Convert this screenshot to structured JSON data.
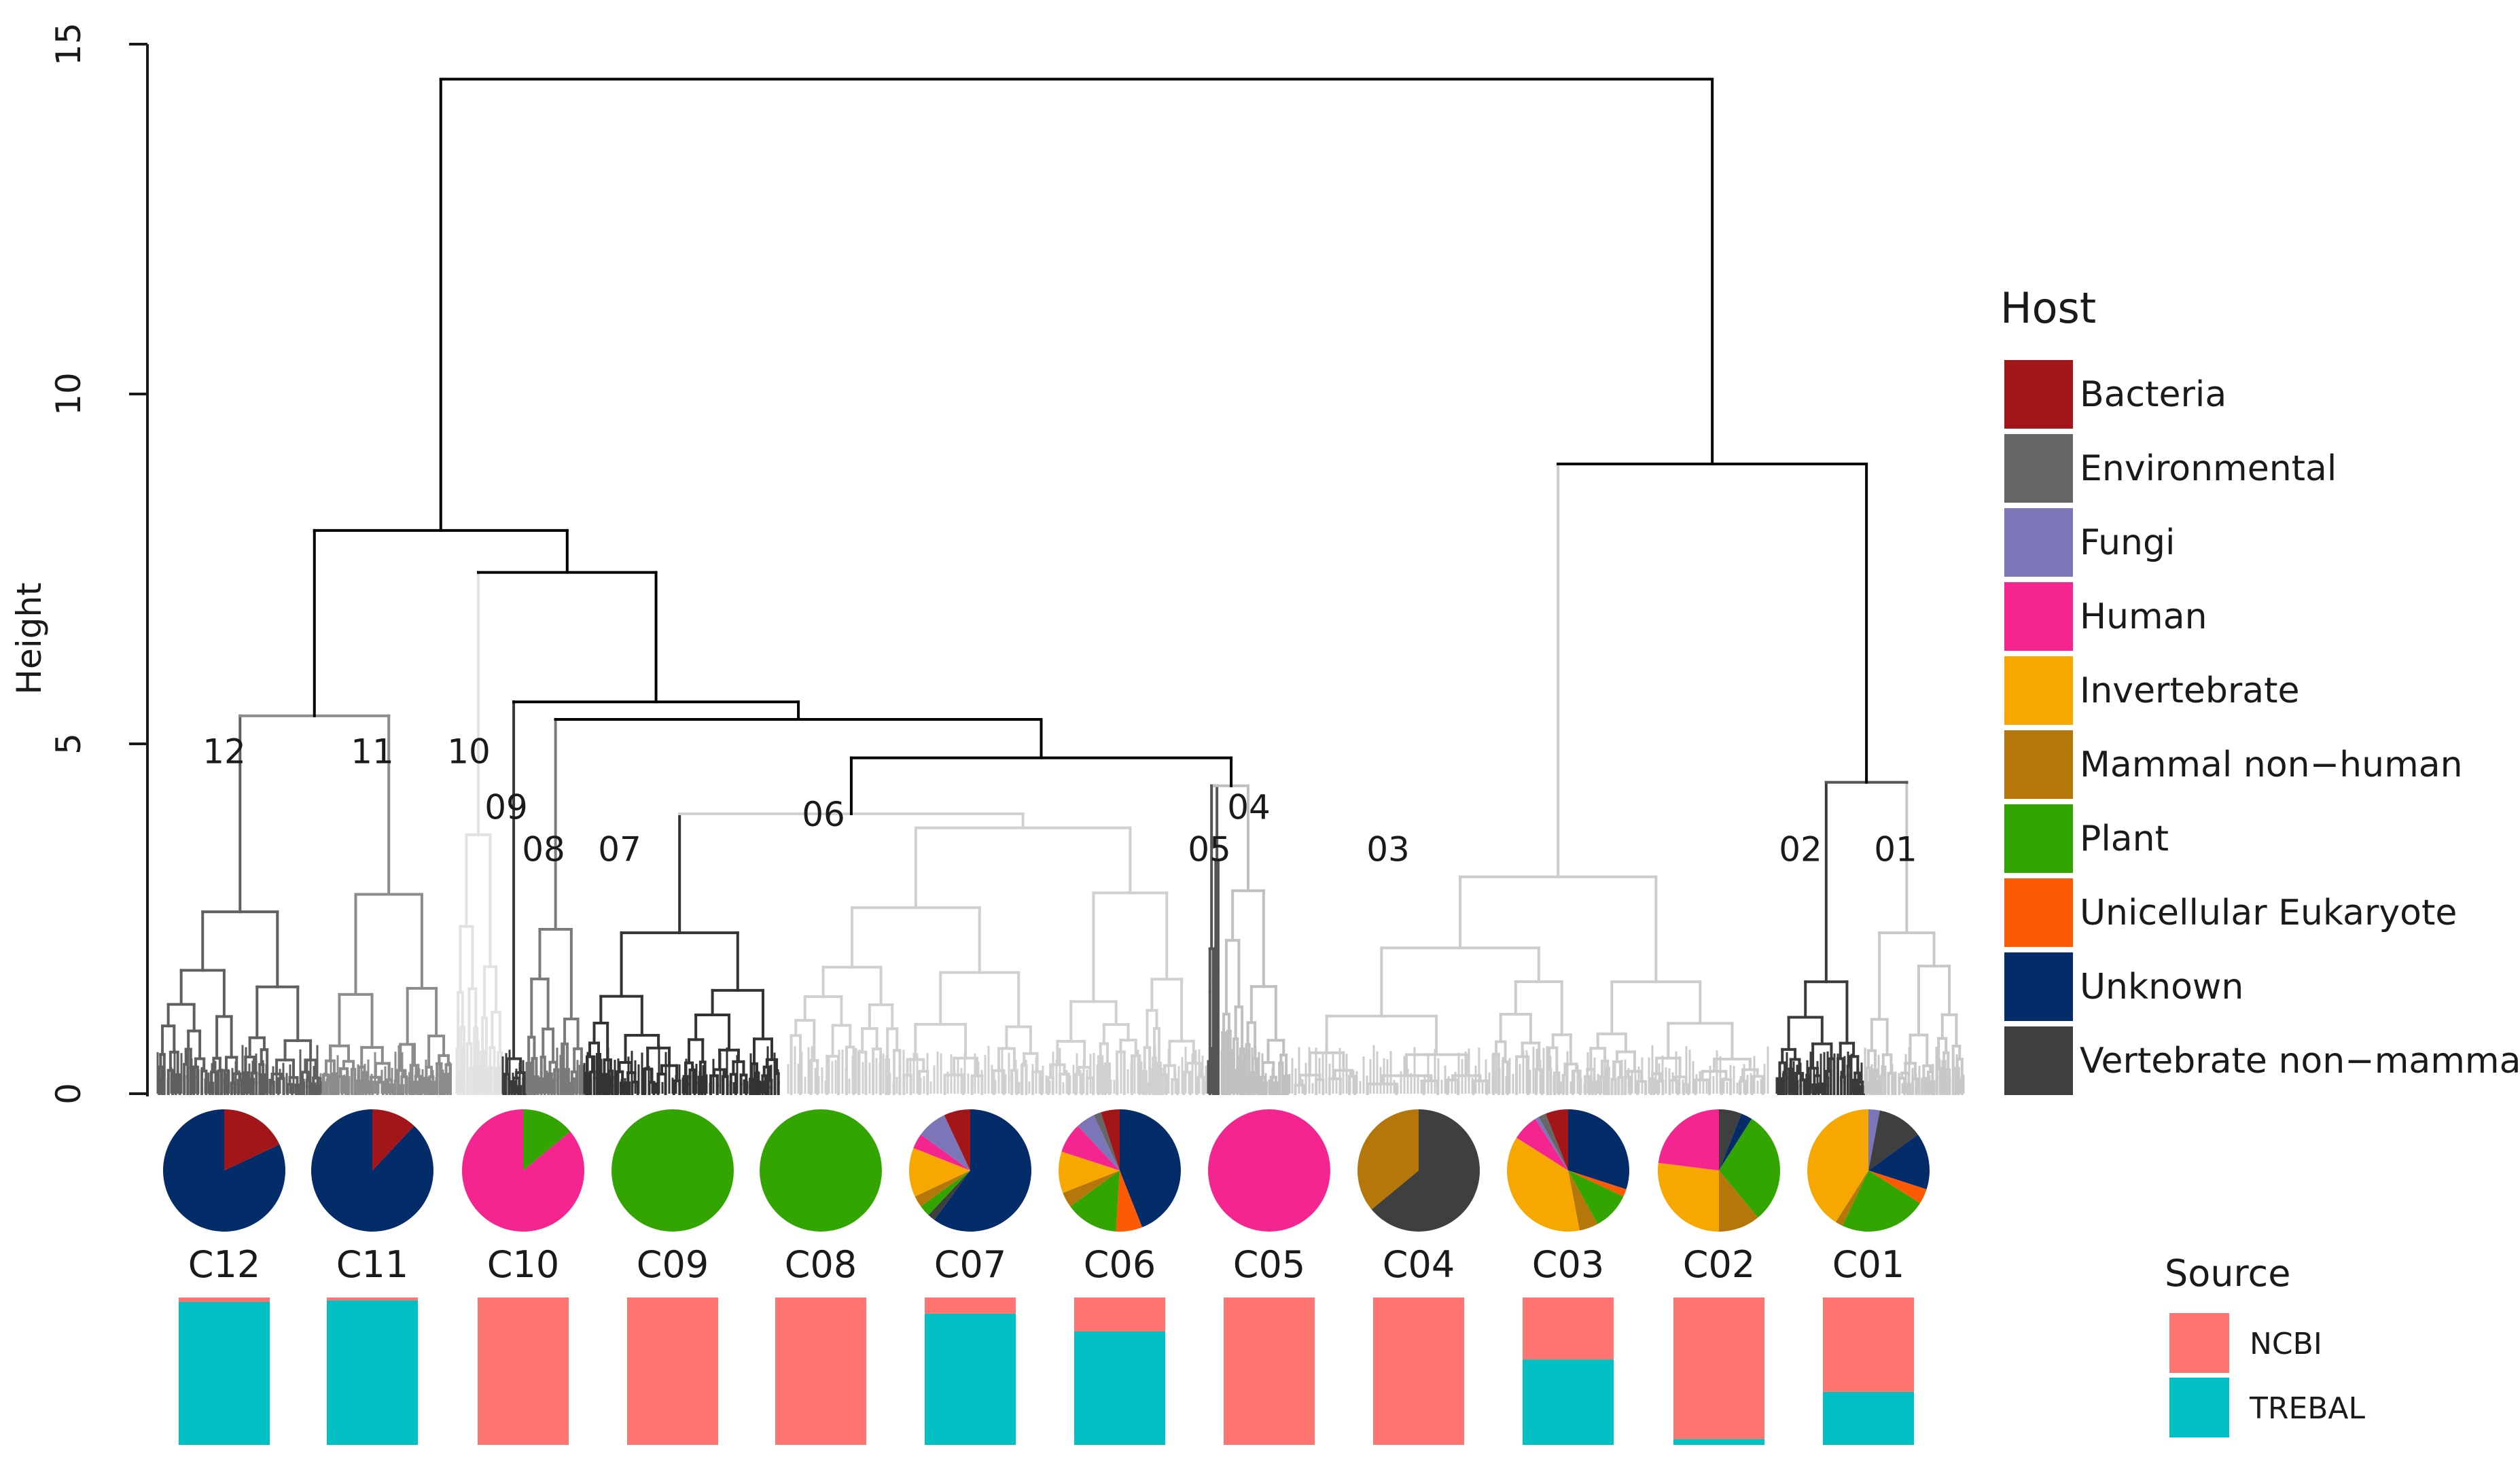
{
  "chart_data": {
    "type": "dendrogram",
    "y_axis": {
      "label": "Height",
      "ylim": [
        0,
        15
      ],
      "ticks": [
        0,
        5,
        10,
        15
      ],
      "tick_labels": [
        "0",
        "5",
        "10",
        "15"
      ]
    },
    "clusters": [
      {
        "id": "12",
        "label": "C12",
        "merge_height": 5.4,
        "label_height": 4.9,
        "hosts": {
          "Bacteria": 18,
          "Unknown": 82
        },
        "source": {
          "NCBI": 3,
          "TREBAL": 97
        }
      },
      {
        "id": "11",
        "label": "C11",
        "merge_height": 5.4,
        "label_height": 4.9,
        "hosts": {
          "Bacteria": 12,
          "Unknown": 88
        },
        "source": {
          "NCBI": 2,
          "TREBAL": 98
        }
      },
      {
        "id": "10",
        "label": "C10",
        "merge_height": 7.45,
        "label_height": 4.9,
        "hosts": {
          "Plant": 14,
          "Human": 86
        },
        "source": {
          "NCBI": 100,
          "TREBAL": 0
        }
      },
      {
        "id": "09",
        "label": "C09",
        "merge_height": 5.6,
        "label_height": 4.1,
        "hosts": {
          "Plant": 100
        },
        "source": {
          "NCBI": 100,
          "TREBAL": 0
        }
      },
      {
        "id": "08",
        "label": "C08",
        "merge_height": 5.35,
        "label_height": 3.5,
        "hosts": {
          "Plant": 100
        },
        "source": {
          "NCBI": 100,
          "TREBAL": 0
        }
      },
      {
        "id": "07",
        "label": "C07",
        "merge_height": 4.0,
        "label_height": 3.5,
        "hosts": {
          "Unknown": 60,
          "Vertebrate non-mammal": 2,
          "Plant": 3,
          "Mammal non-human": 3,
          "Invertebrate": 13,
          "Human": 4,
          "Fungi": 8,
          "Bacteria": 7
        },
        "source": {
          "NCBI": 11,
          "TREBAL": 89
        }
      },
      {
        "id": "06",
        "label": "C06",
        "merge_height": 4.0,
        "label_height": 4.0,
        "hosts": {
          "Unknown": 44,
          "Unicellular Eukaryote": 7,
          "Plant": 14,
          "Mammal non-human": 4,
          "Invertebrate": 11,
          "Human": 8,
          "Fungi": 5,
          "Environmental": 2,
          "Bacteria": 5
        },
        "source": {
          "NCBI": 23,
          "TREBAL": 77
        }
      },
      {
        "id": "05",
        "label": "C05",
        "merge_height": 4.4,
        "label_height": 3.5,
        "hosts": {
          "Human": 100
        },
        "source": {
          "NCBI": 100,
          "TREBAL": 0
        }
      },
      {
        "id": "04",
        "label": "C04",
        "merge_height": 4.4,
        "label_height": 4.1,
        "hosts": {
          "Vertebrate non-mammal": 64,
          "Mammal non-human": 36
        },
        "source": {
          "NCBI": 100,
          "TREBAL": 0
        }
      },
      {
        "id": "03",
        "label": "C03",
        "merge_height": 9.0,
        "label_height": 3.5,
        "hosts": {
          "Unknown": 30,
          "Unicellular Eukaryote": 2,
          "Plant": 10,
          "Mammal non-human": 5,
          "Invertebrate": 37,
          "Human": 7,
          "Fungi": 1,
          "Environmental": 2,
          "Bacteria": 6
        },
        "source": {
          "NCBI": 42,
          "TREBAL": 58
        }
      },
      {
        "id": "02",
        "label": "C02",
        "merge_height": 4.45,
        "label_height": 3.5,
        "hosts": {
          "Vertebrate non-mammal": 6,
          "Unknown": 3,
          "Plant": 30,
          "Mammal non-human": 11,
          "Invertebrate": 27,
          "Human": 23
        },
        "source": {
          "NCBI": 96,
          "TREBAL": 4
        }
      },
      {
        "id": "01",
        "label": "C01",
        "merge_height": 4.45,
        "label_height": 3.5,
        "hosts": {
          "Fungi": 3,
          "Vertebrate non-mammal": 12,
          "Unknown": 15,
          "Unicellular Eukaryote": 4,
          "Plant": 23,
          "Mammal non-human": 2,
          "Invertebrate": 41
        },
        "source": {
          "NCBI": 64,
          "TREBAL": 36
        }
      }
    ],
    "tree": {
      "root_height": 14.5,
      "left_group_height": 8.05,
      "left_inner_height": 7.45,
      "mid_group_height": 5.6,
      "mid_inner_height": 5.35,
      "mid_inner2_height": 4.8,
      "c0706_height": 4.0,
      "right_group_height": 9.0,
      "right_inner_height": 4.45
    },
    "legend_host": {
      "title": "Host",
      "position": "right",
      "entries": [
        {
          "label": "Bacteria",
          "color": "#a21619"
        },
        {
          "label": "Environmental",
          "color": "#666666"
        },
        {
          "label": "Fungi",
          "color": "#7b76b8"
        },
        {
          "label": "Human",
          "color": "#f52590"
        },
        {
          "label": "Invertebrate",
          "color": "#f6a800"
        },
        {
          "label": "Mammal non−human",
          "color": "#b5770a"
        },
        {
          "label": "Plant",
          "color": "#33a500"
        },
        {
          "label": "Unicellular Eukaryote",
          "color": "#fd5a04"
        },
        {
          "label": "Unknown",
          "color": "#042c68"
        },
        {
          "label": "Vertebrate non−mammal",
          "color": "#3f3f3f"
        }
      ]
    },
    "legend_source": {
      "title": "Source",
      "position": "bottom-right",
      "entries": [
        {
          "label": "NCBI",
          "color": "#fd7470"
        },
        {
          "label": "TREBAL",
          "color": "#00c0c3"
        }
      ]
    },
    "branch_colors": {
      "root": "#000000",
      "c12": "#5f5f5f",
      "c11": "#8c8c8c",
      "c10": "#e2e2e2",
      "c09": "#3a3a3a",
      "c08": "#7a7a7a",
      "c07": "#333333",
      "c06": "#d0d0d0",
      "c05": "#555555",
      "c04": "#c0c0c0",
      "c03": "#cccccc",
      "c02": "#3a3a3a",
      "c01": "#c8c8c8",
      "c03_split": "#c8c8c8",
      "c02_split": "#555555"
    }
  }
}
